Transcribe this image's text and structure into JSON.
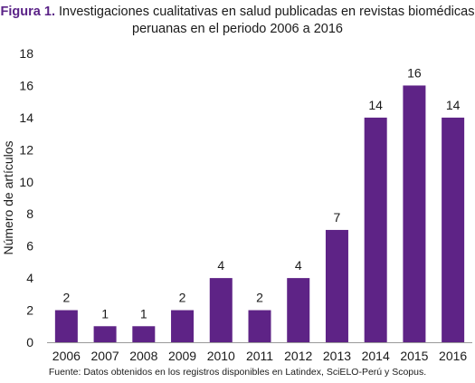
{
  "title": {
    "figure_label": "Figura 1.",
    "line1": "Investigaciones cualitativas en salud publicadas en revistas biomédicas",
    "line2": "peruanas en el periodo 2006 a 2016"
  },
  "source": "Fuente: Datos obtenidos en los registros disponibles en Latindex, SciELO-Perú y Scopus.",
  "colors": {
    "bar": "#5e2386",
    "text": "#1a1a1a",
    "axis": "#9a9a9a"
  },
  "chart_data": {
    "type": "bar",
    "categories": [
      "2006",
      "2007",
      "2008",
      "2009",
      "2010",
      "2011",
      "2012",
      "2013",
      "2014",
      "2015",
      "2016"
    ],
    "values": [
      2,
      1,
      1,
      2,
      4,
      2,
      4,
      7,
      14,
      16,
      14
    ],
    "xlabel": "",
    "ylabel": "Número de artículos",
    "ylim": [
      0,
      18
    ],
    "yticks": [
      0,
      2,
      4,
      6,
      8,
      10,
      12,
      14,
      16,
      18
    ],
    "grid": false,
    "data_labels": true
  }
}
